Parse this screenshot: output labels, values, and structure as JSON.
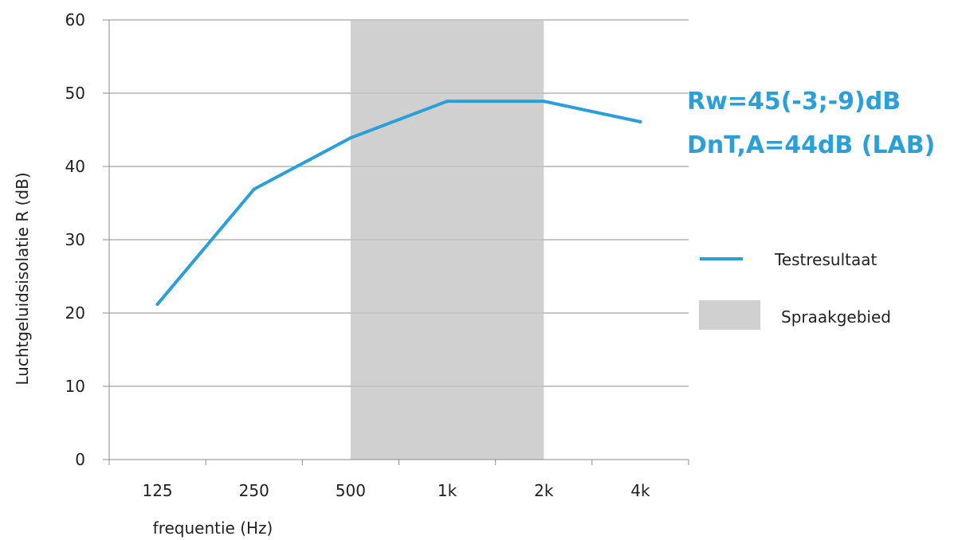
{
  "chart_data": {
    "type": "line",
    "categories": [
      "125",
      "250",
      "500",
      "1k",
      "2k",
      "4k"
    ],
    "series": [
      {
        "name": "Testresultaat",
        "values": [
          21.2,
          36.9,
          43.9,
          48.9,
          48.9,
          46.1
        ],
        "color": "#2b9fd8"
      }
    ],
    "shaded_region": {
      "name": "Spraakgebied",
      "from": "500",
      "to": "2k",
      "color": "#d0d0d0"
    },
    "xlabel": "frequentie  (Hz)",
    "ylabel": "Luchtgeluidsisolatie  R (dB)",
    "ylim": [
      0,
      60
    ],
    "yticks": [
      0,
      10,
      20,
      30,
      40,
      50,
      60
    ],
    "grid": true,
    "legend_placement": "right"
  },
  "annotations": {
    "rw": "Rw=45(-3;-9)dB",
    "dnt": "DnT,A=44dB (LAB)",
    "color": "#2b9fd8"
  }
}
